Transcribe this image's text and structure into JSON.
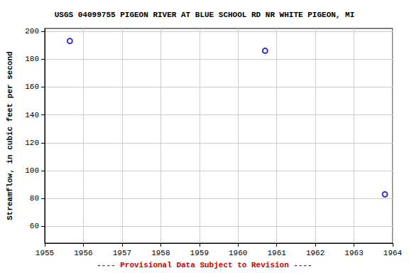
{
  "chart_data": {
    "type": "scatter",
    "title": "USGS 04099755 PIGEON RIVER AT BLUE SCHOOL RD NR WHITE PIGEON, MI",
    "y_label": "Streamflow, in cubic feet per second",
    "annotation": "---- Provisional Data Subject to Revision ----",
    "x": [
      1955.65,
      1960.7,
      1963.8
    ],
    "values": [
      193,
      186,
      83
    ],
    "color": "#0000cc",
    "marker": "circle",
    "xlim": [
      1955,
      1964
    ],
    "xticks": [
      1955,
      1956,
      1957,
      1958,
      1959,
      1960,
      1961,
      1962,
      1963,
      1964
    ],
    "ylim": [
      48,
      202
    ],
    "yticks": [
      60,
      80,
      100,
      120,
      140,
      160,
      180,
      200
    ],
    "grid": true
  }
}
